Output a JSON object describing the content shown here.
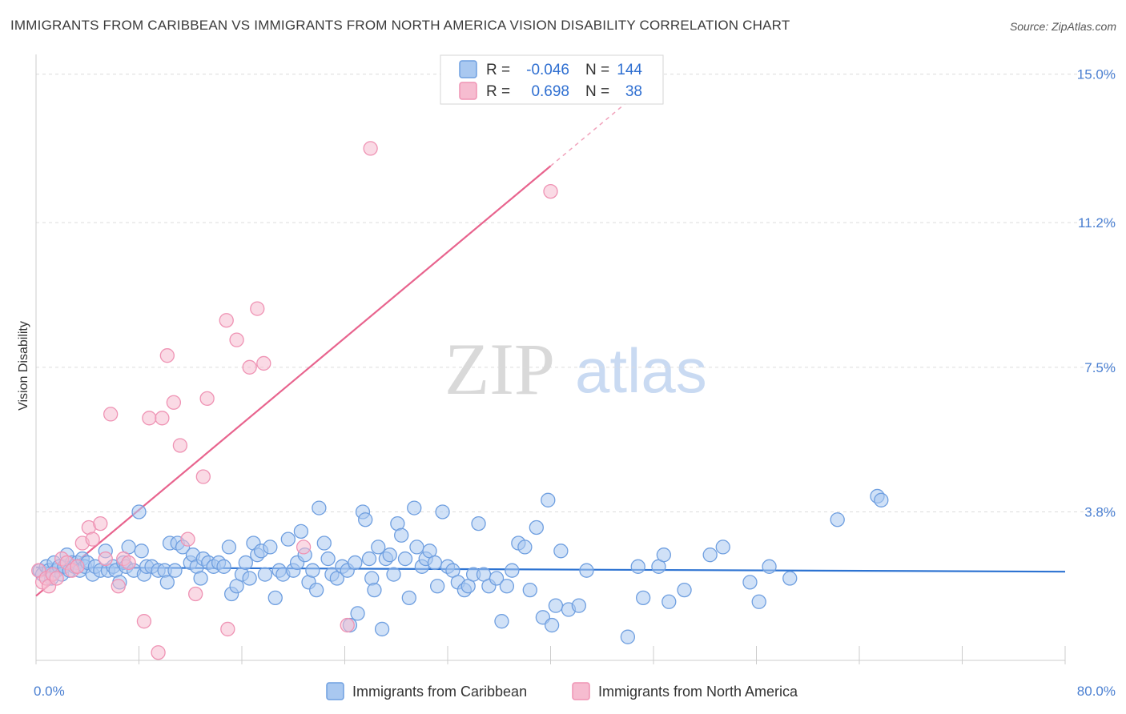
{
  "title": "IMMIGRANTS FROM CARIBBEAN VS IMMIGRANTS FROM NORTH AMERICA VISION DISABILITY CORRELATION CHART",
  "source": "Source: ZipAtlas.com",
  "watermark": {
    "zip": "ZIP",
    "atlas": "atlas"
  },
  "colors": {
    "blue_fill": "#a9c8f0",
    "blue_stroke": "#6f9fe0",
    "blue_line": "#2d73d2",
    "pink_fill": "#f6bcd0",
    "pink_stroke": "#ef93b4",
    "pink_line": "#e8648e",
    "grid": "#dcdcdc",
    "tick_text": "#4a7fd1"
  },
  "legend": {
    "rows": [
      {
        "r_label": "R =",
        "r_value": "-0.046",
        "n_label": "N =",
        "n_value": "144"
      },
      {
        "r_label": "R =",
        "r_value": "0.698",
        "n_label": "N =",
        "n_value": "38"
      }
    ]
  },
  "chart_data": {
    "type": "scatter",
    "xlabel": "",
    "ylabel": "Vision Disability",
    "xlim": [
      0,
      80
    ],
    "ylim": [
      0,
      15.3
    ],
    "x_tick_labels": [
      {
        "value": 0,
        "label": "0.0%"
      },
      {
        "value": 80,
        "label": "80.0%"
      }
    ],
    "y_tick_labels": [
      {
        "value": 3.8,
        "label": "3.8%"
      },
      {
        "value": 7.5,
        "label": "7.5%"
      },
      {
        "value": 11.2,
        "label": "11.2%"
      },
      {
        "value": 15.0,
        "label": "15.0%"
      }
    ],
    "gridlines_y": [
      3.8,
      7.5,
      11.2,
      15.0
    ],
    "series": [
      {
        "name": "Immigrants from Caribbean",
        "color": "blue",
        "trend": {
          "x0": 0,
          "y0": 2.38,
          "x1": 80,
          "y1": 2.27,
          "dashed_from_x": null
        },
        "points": [
          [
            0.3,
            2.3
          ],
          [
            0.5,
            2.2
          ],
          [
            0.8,
            2.4
          ],
          [
            1.0,
            2.3
          ],
          [
            1.2,
            2.1
          ],
          [
            1.4,
            2.5
          ],
          [
            1.6,
            2.3
          ],
          [
            1.8,
            2.4
          ],
          [
            2.0,
            2.2
          ],
          [
            2.2,
            2.4
          ],
          [
            2.4,
            2.7
          ],
          [
            2.6,
            2.3
          ],
          [
            2.8,
            2.5
          ],
          [
            3.0,
            2.4
          ],
          [
            3.2,
            2.5
          ],
          [
            3.4,
            2.3
          ],
          [
            3.6,
            2.6
          ],
          [
            3.8,
            2.4
          ],
          [
            4.0,
            2.5
          ],
          [
            4.4,
            2.2
          ],
          [
            4.6,
            2.4
          ],
          [
            5.0,
            2.3
          ],
          [
            5.4,
            2.8
          ],
          [
            5.6,
            2.3
          ],
          [
            6.0,
            2.4
          ],
          [
            6.2,
            2.3
          ],
          [
            6.5,
            2.0
          ],
          [
            6.8,
            2.5
          ],
          [
            7.0,
            2.4
          ],
          [
            7.2,
            2.9
          ],
          [
            7.6,
            2.3
          ],
          [
            8.0,
            3.8
          ],
          [
            8.2,
            2.8
          ],
          [
            8.4,
            2.2
          ],
          [
            8.6,
            2.4
          ],
          [
            9.0,
            2.4
          ],
          [
            9.5,
            2.3
          ],
          [
            10.0,
            2.3
          ],
          [
            10.2,
            2.0
          ],
          [
            10.4,
            3.0
          ],
          [
            10.8,
            2.3
          ],
          [
            11.0,
            3.0
          ],
          [
            11.4,
            2.9
          ],
          [
            12.0,
            2.5
          ],
          [
            12.2,
            2.7
          ],
          [
            12.5,
            2.4
          ],
          [
            12.8,
            2.1
          ],
          [
            13.0,
            2.6
          ],
          [
            13.4,
            2.5
          ],
          [
            13.8,
            2.4
          ],
          [
            14.2,
            2.5
          ],
          [
            14.6,
            2.4
          ],
          [
            15.0,
            2.9
          ],
          [
            15.2,
            1.7
          ],
          [
            15.6,
            1.9
          ],
          [
            16.0,
            2.2
          ],
          [
            16.3,
            2.5
          ],
          [
            16.6,
            2.1
          ],
          [
            16.9,
            3.0
          ],
          [
            17.2,
            2.7
          ],
          [
            17.5,
            2.8
          ],
          [
            17.8,
            2.2
          ],
          [
            18.2,
            2.9
          ],
          [
            18.6,
            1.6
          ],
          [
            18.9,
            2.3
          ],
          [
            19.2,
            2.2
          ],
          [
            19.6,
            3.1
          ],
          [
            20.0,
            2.3
          ],
          [
            20.3,
            2.5
          ],
          [
            20.6,
            3.3
          ],
          [
            20.9,
            2.7
          ],
          [
            21.2,
            2.0
          ],
          [
            21.5,
            2.3
          ],
          [
            21.8,
            1.8
          ],
          [
            22.0,
            3.9
          ],
          [
            22.4,
            3.0
          ],
          [
            22.7,
            2.6
          ],
          [
            23.0,
            2.2
          ],
          [
            23.4,
            2.1
          ],
          [
            23.8,
            2.4
          ],
          [
            24.2,
            2.3
          ],
          [
            24.4,
            0.9
          ],
          [
            24.8,
            2.5
          ],
          [
            25.0,
            1.2
          ],
          [
            25.4,
            3.8
          ],
          [
            25.6,
            3.6
          ],
          [
            25.9,
            2.6
          ],
          [
            26.1,
            2.1
          ],
          [
            26.3,
            1.8
          ],
          [
            26.6,
            2.9
          ],
          [
            26.9,
            0.8
          ],
          [
            27.2,
            2.6
          ],
          [
            27.5,
            2.7
          ],
          [
            27.8,
            2.2
          ],
          [
            28.1,
            3.5
          ],
          [
            28.4,
            3.2
          ],
          [
            28.7,
            2.6
          ],
          [
            29.0,
            1.6
          ],
          [
            29.4,
            3.9
          ],
          [
            29.6,
            2.9
          ],
          [
            30.0,
            2.4
          ],
          [
            30.3,
            2.6
          ],
          [
            30.6,
            2.8
          ],
          [
            31.0,
            2.5
          ],
          [
            31.2,
            1.9
          ],
          [
            31.6,
            3.8
          ],
          [
            32.0,
            2.4
          ],
          [
            32.4,
            2.3
          ],
          [
            32.8,
            2.0
          ],
          [
            33.3,
            1.8
          ],
          [
            33.6,
            1.9
          ],
          [
            34.0,
            2.2
          ],
          [
            34.4,
            3.5
          ],
          [
            34.8,
            2.2
          ],
          [
            35.2,
            1.9
          ],
          [
            35.8,
            2.1
          ],
          [
            36.2,
            1.0
          ],
          [
            36.6,
            1.9
          ],
          [
            37.0,
            2.3
          ],
          [
            37.5,
            3.0
          ],
          [
            38.0,
            2.9
          ],
          [
            38.4,
            1.8
          ],
          [
            38.9,
            3.4
          ],
          [
            39.4,
            1.1
          ],
          [
            39.8,
            4.1
          ],
          [
            40.1,
            0.9
          ],
          [
            40.4,
            1.4
          ],
          [
            40.8,
            2.8
          ],
          [
            41.4,
            1.3
          ],
          [
            42.2,
            1.4
          ],
          [
            42.8,
            2.3
          ],
          [
            46.0,
            0.6
          ],
          [
            46.8,
            2.4
          ],
          [
            47.2,
            1.6
          ],
          [
            48.4,
            2.4
          ],
          [
            48.8,
            2.7
          ],
          [
            49.2,
            1.5
          ],
          [
            50.4,
            1.8
          ],
          [
            52.4,
            2.7
          ],
          [
            53.4,
            2.9
          ],
          [
            55.5,
            2.0
          ],
          [
            56.2,
            1.5
          ],
          [
            57.0,
            2.4
          ],
          [
            58.6,
            2.1
          ],
          [
            62.3,
            3.6
          ],
          [
            65.4,
            4.2
          ],
          [
            65.7,
            4.1
          ]
        ]
      },
      {
        "name": "Immigrants from North America",
        "color": "pink",
        "trend": {
          "x0": 0,
          "y0": 1.65,
          "x1": 40,
          "y1": 12.65,
          "dashed_from_x": 40,
          "dashed_to_x": 46,
          "dashed_to_y": 14.3
        },
        "points": [
          [
            0.2,
            2.3
          ],
          [
            0.5,
            2.0
          ],
          [
            0.8,
            2.1
          ],
          [
            1.0,
            1.9
          ],
          [
            1.3,
            2.2
          ],
          [
            1.6,
            2.1
          ],
          [
            2.0,
            2.6
          ],
          [
            2.4,
            2.5
          ],
          [
            2.8,
            2.3
          ],
          [
            3.2,
            2.4
          ],
          [
            3.6,
            3.0
          ],
          [
            4.1,
            3.4
          ],
          [
            4.4,
            3.1
          ],
          [
            5.0,
            3.5
          ],
          [
            5.4,
            2.6
          ],
          [
            5.8,
            6.3
          ],
          [
            6.4,
            1.9
          ],
          [
            6.8,
            2.6
          ],
          [
            7.2,
            2.5
          ],
          [
            8.4,
            1.0
          ],
          [
            8.8,
            6.2
          ],
          [
            9.5,
            0.2
          ],
          [
            9.8,
            6.2
          ],
          [
            10.2,
            7.8
          ],
          [
            10.7,
            6.6
          ],
          [
            11.2,
            5.5
          ],
          [
            11.8,
            3.1
          ],
          [
            12.4,
            1.7
          ],
          [
            13.0,
            4.7
          ],
          [
            13.3,
            6.7
          ],
          [
            14.8,
            8.7
          ],
          [
            14.9,
            0.8
          ],
          [
            15.6,
            8.2
          ],
          [
            16.6,
            7.5
          ],
          [
            17.2,
            9.0
          ],
          [
            17.7,
            7.6
          ],
          [
            20.8,
            2.9
          ],
          [
            24.2,
            0.9
          ],
          [
            26.0,
            13.1
          ],
          [
            40.0,
            12.0
          ]
        ]
      }
    ]
  },
  "bottom_legend": [
    {
      "label": "Immigrants from Caribbean",
      "color": "blue"
    },
    {
      "label": "Immigrants from North America",
      "color": "pink"
    }
  ]
}
